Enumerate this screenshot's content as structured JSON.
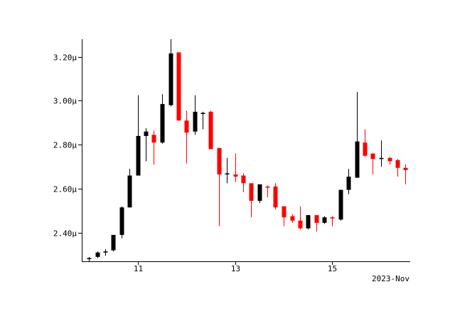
{
  "chart_data": {
    "type": "candlestick",
    "title": "",
    "xlabel": "2023-Nov",
    "ylabel": "",
    "ylim": [
      2.27,
      3.28
    ],
    "y_unit": "µ",
    "xlim": [
      9.85,
      16.6
    ],
    "y_ticks": [
      {
        "value": 2.4,
        "label": "2.40µ"
      },
      {
        "value": 2.6,
        "label": "2.60µ"
      },
      {
        "value": 2.8,
        "label": "2.80µ"
      },
      {
        "value": 3.0,
        "label": "3.00µ"
      },
      {
        "value": 3.2,
        "label": "3.20µ"
      }
    ],
    "x_ticks": [
      {
        "value": 11,
        "label": "11"
      },
      {
        "value": 13,
        "label": "13"
      },
      {
        "value": 15,
        "label": "15"
      }
    ],
    "grid": false,
    "colors": {
      "up": "#000000",
      "down": "#ff0000"
    },
    "candles": [
      {
        "x": 10.0,
        "open": 2.28,
        "high": 2.29,
        "low": 2.27,
        "close": 2.285
      },
      {
        "x": 10.17,
        "open": 2.29,
        "high": 2.315,
        "low": 2.285,
        "close": 2.31
      },
      {
        "x": 10.33,
        "open": 2.31,
        "high": 2.325,
        "low": 2.295,
        "close": 2.315
      },
      {
        "x": 10.5,
        "open": 2.32,
        "high": 2.39,
        "low": 2.315,
        "close": 2.39
      },
      {
        "x": 10.67,
        "open": 2.39,
        "high": 2.52,
        "low": 2.375,
        "close": 2.515
      },
      {
        "x": 10.83,
        "open": 2.515,
        "high": 2.69,
        "low": 2.515,
        "close": 2.66
      },
      {
        "x": 11.0,
        "open": 2.66,
        "high": 3.025,
        "low": 2.66,
        "close": 2.84
      },
      {
        "x": 11.17,
        "open": 2.84,
        "high": 2.875,
        "low": 2.725,
        "close": 2.86
      },
      {
        "x": 11.33,
        "open": 2.845,
        "high": 2.865,
        "low": 2.71,
        "close": 2.81
      },
      {
        "x": 11.5,
        "open": 2.81,
        "high": 3.03,
        "low": 2.805,
        "close": 2.985
      },
      {
        "x": 11.67,
        "open": 2.98,
        "high": 3.28,
        "low": 2.975,
        "close": 3.215
      },
      {
        "x": 11.83,
        "open": 3.22,
        "high": 3.22,
        "low": 2.91,
        "close": 2.91
      },
      {
        "x": 12.0,
        "open": 2.91,
        "high": 2.955,
        "low": 2.715,
        "close": 2.855
      },
      {
        "x": 12.17,
        "open": 2.86,
        "high": 3.025,
        "low": 2.845,
        "close": 2.95
      },
      {
        "x": 12.33,
        "open": 2.94,
        "high": 2.95,
        "low": 2.87,
        "close": 2.945
      },
      {
        "x": 12.5,
        "open": 2.95,
        "high": 2.955,
        "low": 2.78,
        "close": 2.78
      },
      {
        "x": 12.67,
        "open": 2.785,
        "high": 2.785,
        "low": 2.43,
        "close": 2.665
      },
      {
        "x": 12.83,
        "open": 2.665,
        "high": 2.74,
        "low": 2.625,
        "close": 2.67
      },
      {
        "x": 13.0,
        "open": 2.665,
        "high": 2.76,
        "low": 2.63,
        "close": 2.655
      },
      {
        "x": 13.17,
        "open": 2.66,
        "high": 2.67,
        "low": 2.585,
        "close": 2.625
      },
      {
        "x": 13.33,
        "open": 2.625,
        "high": 2.625,
        "low": 2.47,
        "close": 2.545
      },
      {
        "x": 13.5,
        "open": 2.545,
        "high": 2.62,
        "low": 2.535,
        "close": 2.62
      },
      {
        "x": 13.67,
        "open": 2.61,
        "high": 2.615,
        "low": 2.56,
        "close": 2.605
      },
      {
        "x": 13.83,
        "open": 2.61,
        "high": 2.625,
        "low": 2.505,
        "close": 2.515
      },
      {
        "x": 14.0,
        "open": 2.52,
        "high": 2.52,
        "low": 2.43,
        "close": 2.47
      },
      {
        "x": 14.17,
        "open": 2.475,
        "high": 2.485,
        "low": 2.445,
        "close": 2.455
      },
      {
        "x": 14.33,
        "open": 2.455,
        "high": 2.52,
        "low": 2.415,
        "close": 2.42
      },
      {
        "x": 14.5,
        "open": 2.42,
        "high": 2.48,
        "low": 2.415,
        "close": 2.48
      },
      {
        "x": 14.67,
        "open": 2.48,
        "high": 2.48,
        "low": 2.405,
        "close": 2.445
      },
      {
        "x": 14.83,
        "open": 2.445,
        "high": 2.475,
        "low": 2.44,
        "close": 2.47
      },
      {
        "x": 15.0,
        "open": 2.47,
        "high": 2.475,
        "low": 2.43,
        "close": 2.465
      },
      {
        "x": 15.17,
        "open": 2.46,
        "high": 2.595,
        "low": 2.455,
        "close": 2.595
      },
      {
        "x": 15.33,
        "open": 2.595,
        "high": 2.69,
        "low": 2.575,
        "close": 2.655
      },
      {
        "x": 15.5,
        "open": 2.65,
        "high": 3.04,
        "low": 2.65,
        "close": 2.815
      },
      {
        "x": 15.67,
        "open": 2.81,
        "high": 2.87,
        "low": 2.745,
        "close": 2.75
      },
      {
        "x": 15.83,
        "open": 2.76,
        "high": 2.76,
        "low": 2.665,
        "close": 2.735
      },
      {
        "x": 16.0,
        "open": 2.735,
        "high": 2.82,
        "low": 2.7,
        "close": 2.74
      },
      {
        "x": 16.17,
        "open": 2.74,
        "high": 2.745,
        "low": 2.71,
        "close": 2.725
      },
      {
        "x": 16.33,
        "open": 2.73,
        "high": 2.735,
        "low": 2.655,
        "close": 2.695
      },
      {
        "x": 16.5,
        "open": 2.695,
        "high": 2.71,
        "low": 2.62,
        "close": 2.685
      }
    ]
  }
}
